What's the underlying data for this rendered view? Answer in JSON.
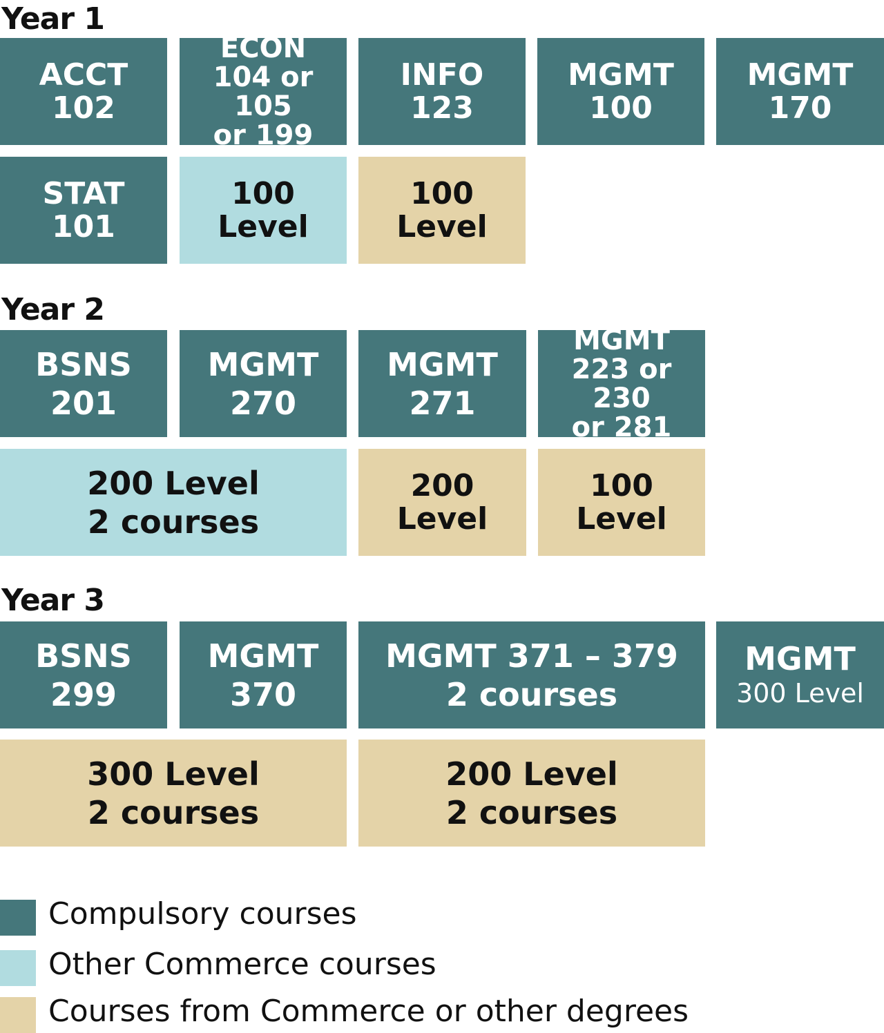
{
  "colors": {
    "compulsory": "#45777b",
    "other_commerce": "#b1dce0",
    "commerce_or_other": "#e4d3a8"
  },
  "year1": {
    "label": "Year 1",
    "acct102": [
      "ACCT",
      "102"
    ],
    "econ": [
      "ECON",
      "104 or 105",
      "or 199"
    ],
    "info123": [
      "INFO",
      "123"
    ],
    "mgmt100": [
      "MGMT",
      "100"
    ],
    "mgmt170": [
      "MGMT",
      "170"
    ],
    "stat101": [
      "STAT",
      "101"
    ],
    "commerce_100": [
      "100",
      "Level"
    ],
    "other_100": [
      "100",
      "Level"
    ]
  },
  "year2": {
    "label": "Year 2",
    "bsns201": [
      "BSNS",
      "201"
    ],
    "mgmt270": [
      "MGMT",
      "270"
    ],
    "mgmt271": [
      "MGMT",
      "271"
    ],
    "mgmt_choice": [
      "MGMT",
      "223 or 230",
      "or 281"
    ],
    "commerce_200": [
      "200 Level",
      "2 courses"
    ],
    "other_200": [
      "200",
      "Level"
    ],
    "other_100": [
      "100",
      "Level"
    ]
  },
  "year3": {
    "label": "Year 3",
    "bsns299": [
      "BSNS",
      "299"
    ],
    "mgmt370": [
      "MGMT",
      "370"
    ],
    "mgmt371_379": [
      "MGMT 371 – 379",
      "2 courses"
    ],
    "mgmt300": [
      "MGMT",
      "300 Level"
    ],
    "other_300": [
      "300 Level",
      "2 courses"
    ],
    "other_200": [
      "200 Level",
      "2 courses"
    ]
  },
  "legend": {
    "compulsory": "Compulsory courses",
    "other_commerce": "Other Commerce courses",
    "commerce_or_other": "Courses from Commerce or other degrees"
  }
}
